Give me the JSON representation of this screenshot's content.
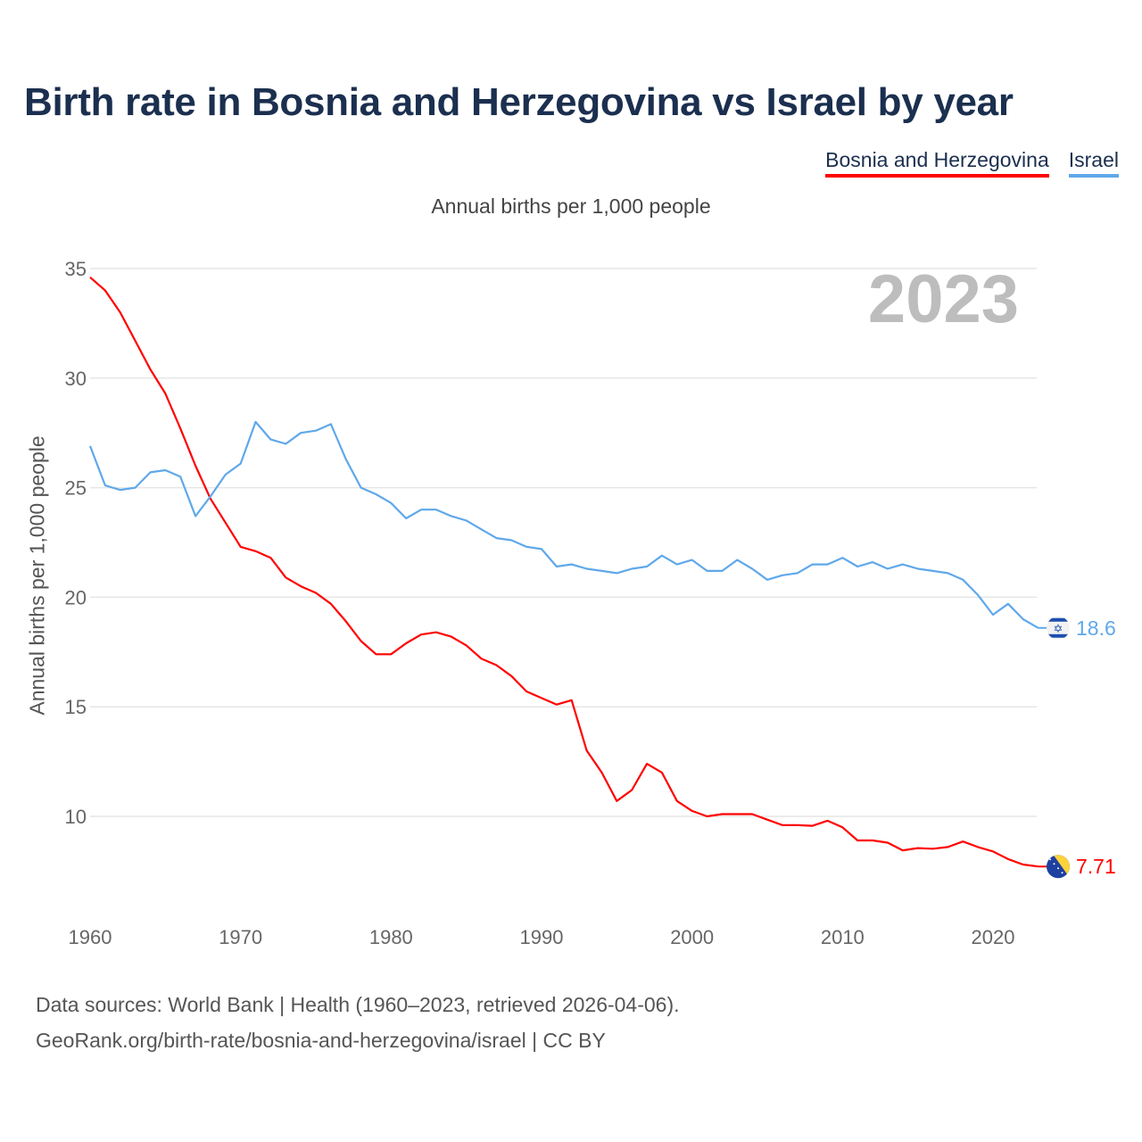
{
  "title": "Birth rate in Bosnia and Herzegovina vs Israel by year",
  "subtitle": "Annual births per 1,000 people",
  "current_year": "2023",
  "footer": {
    "line1": "Data sources: World Bank | Health (1960–2023, retrieved 2026-04-06).",
    "line2": "GeoRank.org/birth-rate/bosnia-and-herzegovina/israel | CC BY"
  },
  "chart_data": {
    "type": "line",
    "title": "Birth rate in Bosnia and Herzegovina vs Israel by year",
    "xlabel": "",
    "ylabel": "Annual births per 1,000 people",
    "xlim": [
      1960,
      2023
    ],
    "ylim": [
      5,
      35
    ],
    "xticks": [
      "1960",
      "1970",
      "1980",
      "1990",
      "2000",
      "2010",
      "2020"
    ],
    "yticks": [
      "10",
      "15",
      "20",
      "25",
      "30",
      "35"
    ],
    "grid": true,
    "legend_position": "top-right",
    "x_start": 1960,
    "series": [
      {
        "name": "Bosnia and Herzegovina",
        "color": "#ff0000",
        "end_label": "7.71",
        "flag": "bosnia-flag",
        "values": [
          34.6,
          34.0,
          33.0,
          31.7,
          30.4,
          29.3,
          27.7,
          26.0,
          24.5,
          23.4,
          22.3,
          22.1,
          21.8,
          20.9,
          20.5,
          20.2,
          19.7,
          18.9,
          18.0,
          17.4,
          17.4,
          17.9,
          18.3,
          18.4,
          18.2,
          17.8,
          17.2,
          16.9,
          16.4,
          15.7,
          15.4,
          15.1,
          15.3,
          13.0,
          12.0,
          10.7,
          11.2,
          12.4,
          12.0,
          10.7,
          10.25,
          10.0,
          10.1,
          10.1,
          10.1,
          9.85,
          9.6,
          9.6,
          9.57,
          9.8,
          9.5,
          8.9,
          8.9,
          8.8,
          8.45,
          8.55,
          8.52,
          8.6,
          8.85,
          8.6,
          8.4,
          8.05,
          7.8,
          7.71
        ]
      },
      {
        "name": "Israel",
        "color": "#5fa8ea",
        "end_label": "18.6",
        "flag": "israel-flag",
        "values": [
          26.9,
          25.1,
          24.9,
          25.0,
          25.7,
          25.8,
          25.5,
          23.7,
          24.6,
          25.6,
          26.1,
          28.0,
          27.2,
          27.0,
          27.5,
          27.6,
          27.9,
          26.3,
          25.0,
          24.7,
          24.3,
          23.6,
          24.0,
          24.0,
          23.7,
          23.5,
          23.1,
          22.7,
          22.6,
          22.3,
          22.2,
          21.4,
          21.5,
          21.3,
          21.2,
          21.1,
          21.3,
          21.4,
          21.9,
          21.5,
          21.7,
          21.2,
          21.2,
          21.7,
          21.3,
          20.8,
          21.0,
          21.1,
          21.5,
          21.5,
          21.8,
          21.4,
          21.6,
          21.3,
          21.5,
          21.3,
          21.2,
          21.1,
          20.8,
          20.1,
          19.2,
          19.7,
          19.0,
          18.6
        ]
      }
    ]
  }
}
